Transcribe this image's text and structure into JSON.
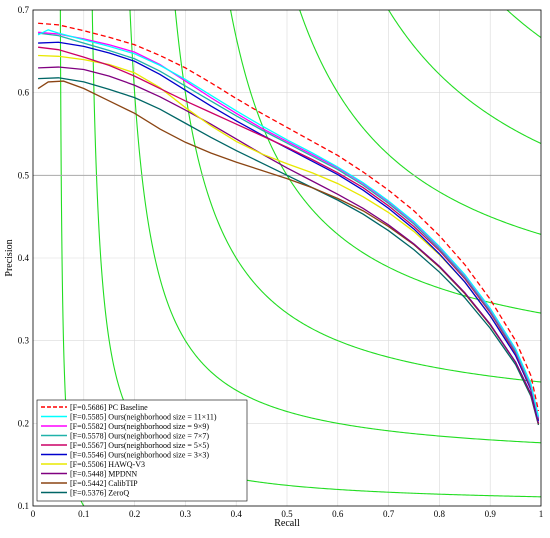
{
  "chart_data": {
    "type": "line",
    "title": "",
    "xlabel": "Recall",
    "ylabel": "Precision",
    "xlim": [
      0,
      1
    ],
    "ylim": [
      0.1,
      0.7
    ],
    "xticks": [
      "0",
      "0.1",
      "0.2",
      "0.3",
      "0.4",
      "0.5",
      "0.6",
      "0.7",
      "0.8",
      "0.9",
      "1"
    ],
    "yticks": [
      "0.1",
      "0.2",
      "0.3",
      "0.4",
      "0.5",
      "0.6",
      "0.7"
    ],
    "grid": true,
    "legend_position": "bottom-left",
    "reference_line": {
      "y": 0.5,
      "color": "#aaaaaa"
    },
    "iso_f_curves": {
      "f_values": [
        0.1,
        0.2,
        0.3,
        0.4,
        0.5,
        0.6,
        0.7,
        0.8,
        0.9
      ],
      "color": "#22dd22"
    },
    "series": [
      {
        "name": "[F=0.5686] PC Baseline",
        "color": "#ff0000",
        "dash": "dashed",
        "points": [
          [
            0.01,
            0.684
          ],
          [
            0.05,
            0.682
          ],
          [
            0.1,
            0.675
          ],
          [
            0.15,
            0.667
          ],
          [
            0.2,
            0.658
          ],
          [
            0.25,
            0.645
          ],
          [
            0.3,
            0.63
          ],
          [
            0.35,
            0.612
          ],
          [
            0.4,
            0.593
          ],
          [
            0.45,
            0.575
          ],
          [
            0.5,
            0.558
          ],
          [
            0.55,
            0.541
          ],
          [
            0.6,
            0.524
          ],
          [
            0.65,
            0.504
          ],
          [
            0.7,
            0.482
          ],
          [
            0.75,
            0.457
          ],
          [
            0.8,
            0.427
          ],
          [
            0.85,
            0.392
          ],
          [
            0.9,
            0.35
          ],
          [
            0.95,
            0.3
          ],
          [
            0.98,
            0.258
          ],
          [
            0.995,
            0.215
          ]
        ]
      },
      {
        "name": "[F=0.5585] Ours(neighborhood size = 11×11)",
        "color": "#00ffff",
        "points": [
          [
            0.01,
            0.67
          ],
          [
            0.03,
            0.676
          ],
          [
            0.05,
            0.672
          ],
          [
            0.1,
            0.664
          ],
          [
            0.15,
            0.656
          ],
          [
            0.2,
            0.647
          ],
          [
            0.25,
            0.633
          ],
          [
            0.3,
            0.616
          ],
          [
            0.35,
            0.597
          ],
          [
            0.4,
            0.578
          ],
          [
            0.45,
            0.56
          ],
          [
            0.5,
            0.543
          ],
          [
            0.55,
            0.527
          ],
          [
            0.6,
            0.51
          ],
          [
            0.65,
            0.491
          ],
          [
            0.7,
            0.469
          ],
          [
            0.75,
            0.444
          ],
          [
            0.8,
            0.414
          ],
          [
            0.85,
            0.38
          ],
          [
            0.9,
            0.339
          ],
          [
            0.95,
            0.29
          ],
          [
            0.98,
            0.248
          ],
          [
            0.995,
            0.208
          ]
        ]
      },
      {
        "name": "[F=0.5582] Ours(neighborhood size = 9×9)",
        "color": "#ff00ff",
        "points": [
          [
            0.01,
            0.673
          ],
          [
            0.05,
            0.671
          ],
          [
            0.1,
            0.665
          ],
          [
            0.15,
            0.658
          ],
          [
            0.2,
            0.649
          ],
          [
            0.25,
            0.634
          ],
          [
            0.3,
            0.614
          ],
          [
            0.35,
            0.594
          ],
          [
            0.4,
            0.575
          ],
          [
            0.45,
            0.557
          ],
          [
            0.5,
            0.541
          ],
          [
            0.55,
            0.525
          ],
          [
            0.6,
            0.509
          ],
          [
            0.65,
            0.49
          ],
          [
            0.7,
            0.468
          ],
          [
            0.75,
            0.443
          ],
          [
            0.8,
            0.413
          ],
          [
            0.85,
            0.379
          ],
          [
            0.9,
            0.338
          ],
          [
            0.95,
            0.289
          ],
          [
            0.98,
            0.247
          ],
          [
            0.995,
            0.207
          ]
        ]
      },
      {
        "name": "[F=0.5578] Ours(neighborhood size = 7×7)",
        "color": "#20b2aa",
        "points": [
          [
            0.01,
            0.672
          ],
          [
            0.05,
            0.669
          ],
          [
            0.1,
            0.66
          ],
          [
            0.15,
            0.651
          ],
          [
            0.2,
            0.641
          ],
          [
            0.25,
            0.626
          ],
          [
            0.3,
            0.608
          ],
          [
            0.35,
            0.59
          ],
          [
            0.4,
            0.572
          ],
          [
            0.45,
            0.555
          ],
          [
            0.5,
            0.539
          ],
          [
            0.55,
            0.523
          ],
          [
            0.6,
            0.507
          ],
          [
            0.65,
            0.488
          ],
          [
            0.7,
            0.466
          ],
          [
            0.75,
            0.441
          ],
          [
            0.8,
            0.411
          ],
          [
            0.85,
            0.377
          ],
          [
            0.9,
            0.336
          ],
          [
            0.95,
            0.287
          ],
          [
            0.98,
            0.245
          ],
          [
            0.995,
            0.206
          ]
        ]
      },
      {
        "name": "[F=0.5567] Ours(neighborhood size = 5×5)",
        "color": "#cc0066",
        "points": [
          [
            0.01,
            0.655
          ],
          [
            0.05,
            0.652
          ],
          [
            0.1,
            0.643
          ],
          [
            0.15,
            0.633
          ],
          [
            0.2,
            0.62
          ],
          [
            0.25,
            0.605
          ],
          [
            0.3,
            0.59
          ],
          [
            0.35,
            0.576
          ],
          [
            0.4,
            0.562
          ],
          [
            0.45,
            0.548
          ],
          [
            0.5,
            0.534
          ],
          [
            0.55,
            0.519
          ],
          [
            0.6,
            0.503
          ],
          [
            0.65,
            0.485
          ],
          [
            0.7,
            0.463
          ],
          [
            0.75,
            0.438
          ],
          [
            0.8,
            0.409
          ],
          [
            0.85,
            0.375
          ],
          [
            0.9,
            0.334
          ],
          [
            0.95,
            0.285
          ],
          [
            0.98,
            0.243
          ],
          [
            0.995,
            0.205
          ]
        ]
      },
      {
        "name": "[F=0.5546] Ours(neighborhood size = 3×3)",
        "color": "#0000cc",
        "points": [
          [
            0.01,
            0.66
          ],
          [
            0.05,
            0.661
          ],
          [
            0.1,
            0.656
          ],
          [
            0.15,
            0.648
          ],
          [
            0.2,
            0.638
          ],
          [
            0.25,
            0.622
          ],
          [
            0.3,
            0.603
          ],
          [
            0.35,
            0.584
          ],
          [
            0.4,
            0.566
          ],
          [
            0.45,
            0.549
          ],
          [
            0.5,
            0.533
          ],
          [
            0.55,
            0.517
          ],
          [
            0.6,
            0.501
          ],
          [
            0.65,
            0.482
          ],
          [
            0.7,
            0.46
          ],
          [
            0.75,
            0.435
          ],
          [
            0.8,
            0.405
          ],
          [
            0.85,
            0.371
          ],
          [
            0.9,
            0.33
          ],
          [
            0.95,
            0.282
          ],
          [
            0.98,
            0.241
          ],
          [
            0.995,
            0.203
          ]
        ]
      },
      {
        "name": "[F=0.5506] HAWQ-V3",
        "color": "#e8e800",
        "points": [
          [
            0.01,
            0.645
          ],
          [
            0.05,
            0.644
          ],
          [
            0.1,
            0.64
          ],
          [
            0.15,
            0.634
          ],
          [
            0.2,
            0.624
          ],
          [
            0.25,
            0.606
          ],
          [
            0.3,
            0.582
          ],
          [
            0.35,
            0.56
          ],
          [
            0.4,
            0.541
          ],
          [
            0.45,
            0.526
          ],
          [
            0.5,
            0.514
          ],
          [
            0.55,
            0.503
          ],
          [
            0.6,
            0.49
          ],
          [
            0.65,
            0.474
          ],
          [
            0.7,
            0.455
          ],
          [
            0.75,
            0.432
          ],
          [
            0.8,
            0.404
          ],
          [
            0.85,
            0.371
          ],
          [
            0.9,
            0.33
          ],
          [
            0.95,
            0.283
          ],
          [
            0.98,
            0.242
          ],
          [
            0.995,
            0.204
          ]
        ]
      },
      {
        "name": "[F=0.5448] MPDNN",
        "color": "#800080",
        "points": [
          [
            0.01,
            0.63
          ],
          [
            0.05,
            0.631
          ],
          [
            0.1,
            0.628
          ],
          [
            0.15,
            0.62
          ],
          [
            0.2,
            0.609
          ],
          [
            0.25,
            0.595
          ],
          [
            0.3,
            0.579
          ],
          [
            0.35,
            0.562
          ],
          [
            0.4,
            0.544
          ],
          [
            0.45,
            0.526
          ],
          [
            0.5,
            0.509
          ],
          [
            0.55,
            0.493
          ],
          [
            0.6,
            0.477
          ],
          [
            0.65,
            0.46
          ],
          [
            0.7,
            0.44
          ],
          [
            0.75,
            0.417
          ],
          [
            0.8,
            0.39
          ],
          [
            0.85,
            0.358
          ],
          [
            0.9,
            0.32
          ],
          [
            0.95,
            0.274
          ],
          [
            0.98,
            0.236
          ],
          [
            0.995,
            0.2
          ]
        ]
      },
      {
        "name": "[F=0.5442] CalibTIP",
        "color": "#8b4513",
        "points": [
          [
            0.01,
            0.605
          ],
          [
            0.03,
            0.613
          ],
          [
            0.06,
            0.614
          ],
          [
            0.1,
            0.605
          ],
          [
            0.15,
            0.59
          ],
          [
            0.2,
            0.575
          ],
          [
            0.25,
            0.556
          ],
          [
            0.3,
            0.54
          ],
          [
            0.35,
            0.527
          ],
          [
            0.4,
            0.516
          ],
          [
            0.45,
            0.506
          ],
          [
            0.5,
            0.496
          ],
          [
            0.55,
            0.485
          ],
          [
            0.6,
            0.472
          ],
          [
            0.65,
            0.457
          ],
          [
            0.7,
            0.438
          ],
          [
            0.75,
            0.416
          ],
          [
            0.8,
            0.389
          ],
          [
            0.85,
            0.357
          ],
          [
            0.9,
            0.319
          ],
          [
            0.95,
            0.274
          ],
          [
            0.98,
            0.235
          ],
          [
            0.995,
            0.199
          ]
        ]
      },
      {
        "name": "[F=0.5376] ZeroQ",
        "color": "#006666",
        "points": [
          [
            0.01,
            0.617
          ],
          [
            0.05,
            0.618
          ],
          [
            0.1,
            0.613
          ],
          [
            0.15,
            0.604
          ],
          [
            0.2,
            0.594
          ],
          [
            0.25,
            0.58
          ],
          [
            0.3,
            0.563
          ],
          [
            0.35,
            0.546
          ],
          [
            0.4,
            0.53
          ],
          [
            0.45,
            0.515
          ],
          [
            0.5,
            0.5
          ],
          [
            0.55,
            0.485
          ],
          [
            0.6,
            0.47
          ],
          [
            0.65,
            0.453
          ],
          [
            0.7,
            0.433
          ],
          [
            0.75,
            0.41
          ],
          [
            0.8,
            0.383
          ],
          [
            0.85,
            0.352
          ],
          [
            0.9,
            0.315
          ],
          [
            0.95,
            0.271
          ],
          [
            0.98,
            0.233
          ],
          [
            0.995,
            0.198
          ]
        ]
      }
    ]
  }
}
